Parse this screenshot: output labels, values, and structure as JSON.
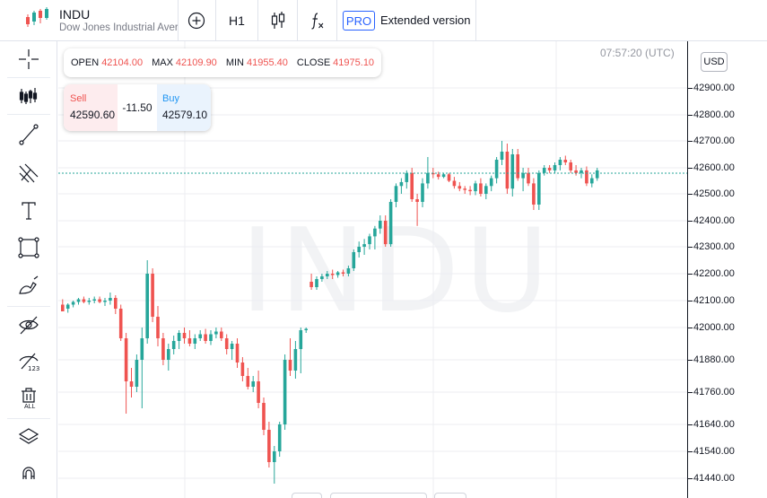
{
  "header": {
    "symbol": "INDU",
    "description": "Dow Jones Industrial Average",
    "timeframe": "H1",
    "pro_badge": "PRO",
    "extended_version": "Extended version",
    "icons": [
      "candles-logo-icon",
      "add-indicator-icon",
      "candle-type-icon",
      "function-icon"
    ]
  },
  "left_toolbar": {
    "tools": [
      "crosshair-icon",
      "indicators-icon",
      "trend-line-icon",
      "pitchfork-icon",
      "text-icon",
      "rectangle-icon",
      "brush-icon",
      "hide-drawings-icon",
      "hide-labels-icon",
      "delete-all-icon",
      "layers-icon",
      "magnet-icon"
    ],
    "delete_all_label": "ALL"
  },
  "ohlc": {
    "open_label": "OPEN",
    "open": "42104.00",
    "max_label": "MAX",
    "max": "42109.90",
    "min_label": "MIN",
    "min": "41955.40",
    "close_label": "CLOSE",
    "close": "41975.10"
  },
  "trade": {
    "sell_label": "Sell",
    "sell_price": "42590.60",
    "spread": "-11.50",
    "buy_label": "Buy",
    "buy_price": "42579.10"
  },
  "clock": "07:57:20 (UTC)",
  "currency": "USD",
  "watermark": "INDU",
  "colors": {
    "up": "#26a69a",
    "down": "#ef5350",
    "accent": "#2962ff",
    "grid": "#eceef2"
  },
  "price_scale": [
    "42900.00",
    "42800.00",
    "42700.00",
    "42600.00",
    "42500.00",
    "42400.00",
    "42300.00",
    "42200.00",
    "42100.00",
    "42000.00",
    "41880.00",
    "41760.00",
    "41640.00",
    "41540.00",
    "41440.00"
  ],
  "chart_data": {
    "type": "candlestick",
    "timeframe": "H1",
    "current_price": 42579.1,
    "candles": [
      [
        42085,
        42105,
        42060,
        42060
      ],
      [
        42070,
        42090,
        42055,
        42085
      ],
      [
        42085,
        42100,
        42075,
        42095
      ],
      [
        42095,
        42110,
        42085,
        42105
      ],
      [
        42105,
        42115,
        42090,
        42095
      ],
      [
        42095,
        42110,
        42085,
        42100
      ],
      [
        42100,
        42115,
        42090,
        42105
      ],
      [
        42105,
        42115,
        42090,
        42095
      ],
      [
        42095,
        42110,
        42080,
        42100
      ],
      [
        42100,
        42130,
        42085,
        42110
      ],
      [
        42110,
        42120,
        42050,
        42070
      ],
      [
        42070,
        42085,
        41950,
        41960
      ],
      [
        41960,
        41980,
        41680,
        41800
      ],
      [
        41800,
        41850,
        41740,
        41780
      ],
      [
        41780,
        41900,
        41760,
        41880
      ],
      [
        41880,
        42000,
        41700,
        41960
      ],
      [
        41960,
        42250,
        41940,
        42200
      ],
      [
        42200,
        42220,
        42020,
        42040
      ],
      [
        42040,
        42080,
        41930,
        41960
      ],
      [
        41960,
        41980,
        41860,
        41880
      ],
      [
        41880,
        41940,
        41840,
        41920
      ],
      [
        41920,
        41970,
        41900,
        41950
      ],
      [
        41950,
        41990,
        41920,
        41980
      ],
      [
        41980,
        42000,
        41940,
        41960
      ],
      [
        41960,
        41990,
        41930,
        41940
      ],
      [
        41940,
        41975,
        41920,
        41960
      ],
      [
        41960,
        41990,
        41950,
        41975
      ],
      [
        41975,
        41995,
        41940,
        41950
      ],
      [
        41950,
        41990,
        41935,
        41975
      ],
      [
        41975,
        42000,
        41960,
        41985
      ],
      [
        41985,
        42000,
        41950,
        41960
      ],
      [
        41960,
        41975,
        41900,
        41920
      ],
      [
        41920,
        41950,
        41880,
        41940
      ],
      [
        41940,
        41960,
        41850,
        41870
      ],
      [
        41870,
        41890,
        41800,
        41820
      ],
      [
        41820,
        41850,
        41770,
        41780
      ],
      [
        41780,
        41820,
        41760,
        41800
      ],
      [
        41800,
        41840,
        41700,
        41720
      ],
      [
        41720,
        41740,
        41600,
        41620
      ],
      [
        41620,
        41650,
        41480,
        41500
      ],
      [
        41500,
        41560,
        41420,
        41540
      ],
      [
        41540,
        41650,
        41520,
        41640
      ],
      [
        41640,
        41900,
        41620,
        41880
      ],
      [
        41880,
        41960,
        41820,
        41840
      ],
      [
        41840,
        41950,
        41810,
        41920
      ],
      [
        41920,
        42000,
        41830,
        41990
      ],
      [
        41990,
        42000,
        41980,
        41995
      ],
      [
        42170,
        42200,
        42140,
        42150
      ],
      [
        42150,
        42190,
        42140,
        42180
      ],
      [
        42180,
        42200,
        42170,
        42190
      ],
      [
        42190,
        42210,
        42180,
        42200
      ],
      [
        42200,
        42215,
        42180,
        42195
      ],
      [
        42195,
        42210,
        42185,
        42205
      ],
      [
        42205,
        42215,
        42190,
        42200
      ],
      [
        42200,
        42230,
        42190,
        42220
      ],
      [
        42220,
        42290,
        42210,
        42280
      ],
      [
        42280,
        42320,
        42260,
        42300
      ],
      [
        42300,
        42330,
        42270,
        42310
      ],
      [
        42310,
        42350,
        42290,
        42340
      ],
      [
        42340,
        42380,
        42290,
        42370
      ],
      [
        42370,
        42420,
        42350,
        42400
      ],
      [
        42400,
        42420,
        42300,
        42310
      ],
      [
        42310,
        42480,
        42300,
        42470
      ],
      [
        42470,
        42540,
        42450,
        42530
      ],
      [
        42530,
        42560,
        42500,
        42545
      ],
      [
        42545,
        42590,
        42520,
        42580
      ],
      [
        42580,
        42600,
        42470,
        42480
      ],
      [
        42480,
        42500,
        42380,
        42470
      ],
      [
        42470,
        42560,
        42450,
        42540
      ],
      [
        42540,
        42640,
        42520,
        42580
      ],
      [
        42580,
        42600,
        42560,
        42575
      ],
      [
        42575,
        42585,
        42555,
        42565
      ],
      [
        42565,
        42580,
        42560,
        42575
      ],
      [
        42575,
        42580,
        42545,
        42550
      ],
      [
        42550,
        42565,
        42520,
        42530
      ],
      [
        42530,
        42545,
        42510,
        42520
      ],
      [
        42520,
        42530,
        42500,
        42515
      ],
      [
        42515,
        42530,
        42495,
        42510
      ],
      [
        42510,
        42550,
        42495,
        42540
      ],
      [
        42540,
        42560,
        42490,
        42500
      ],
      [
        42500,
        42540,
        42480,
        42530
      ],
      [
        42530,
        42570,
        42510,
        42560
      ],
      [
        42560,
        42640,
        42540,
        42630
      ],
      [
        42630,
        42700,
        42610,
        42660
      ],
      [
        42660,
        42690,
        42500,
        42520
      ],
      [
        42520,
        42670,
        42490,
        42650
      ],
      [
        42650,
        42670,
        42550,
        42560
      ],
      [
        42560,
        42600,
        42510,
        42580
      ],
      [
        42580,
        42600,
        42530,
        42540
      ],
      [
        42540,
        42560,
        42440,
        42460
      ],
      [
        42460,
        42590,
        42440,
        42580
      ],
      [
        42580,
        42610,
        42570,
        42600
      ],
      [
        42600,
        42610,
        42580,
        42590
      ],
      [
        42590,
        42620,
        42580,
        42610
      ],
      [
        42610,
        42640,
        42590,
        42630
      ],
      [
        42630,
        42645,
        42610,
        42620
      ],
      [
        42620,
        42630,
        42580,
        42590
      ],
      [
        42590,
        42610,
        42570,
        42580
      ],
      [
        42580,
        42600,
        42560,
        42590
      ],
      [
        42590,
        42605,
        42530,
        42540
      ],
      [
        42540,
        42575,
        42525,
        42560
      ],
      [
        42560,
        42600,
        42550,
        42590
      ]
    ]
  }
}
